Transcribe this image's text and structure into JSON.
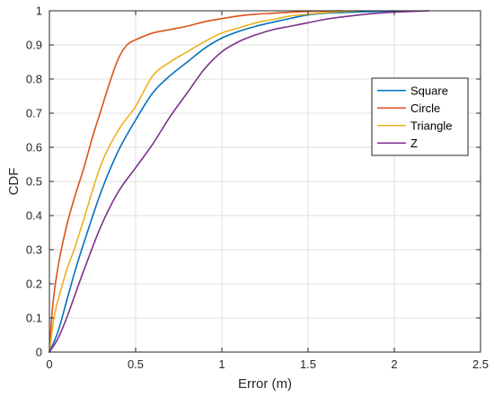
{
  "chart_data": {
    "type": "line",
    "xlabel": "Error (m)",
    "ylabel": "CDF",
    "xlim": [
      0,
      2.5
    ],
    "ylim": [
      0,
      1
    ],
    "xticks": [
      "0",
      "0.5",
      "1",
      "1.5",
      "2",
      "2.5"
    ],
    "yticks": [
      "0",
      "0.1",
      "0.2",
      "0.3",
      "0.4",
      "0.5",
      "0.6",
      "0.7",
      "0.8",
      "0.9",
      "1"
    ],
    "grid": true,
    "legend_position": "right",
    "series": [
      {
        "name": "Square",
        "color": "#0072BD",
        "points": [
          [
            0,
            0
          ],
          [
            0.05,
            0.06
          ],
          [
            0.1,
            0.15
          ],
          [
            0.15,
            0.24
          ],
          [
            0.2,
            0.32
          ],
          [
            0.3,
            0.47
          ],
          [
            0.4,
            0.59
          ],
          [
            0.5,
            0.68
          ],
          [
            0.6,
            0.76
          ],
          [
            0.7,
            0.81
          ],
          [
            0.8,
            0.85
          ],
          [
            0.9,
            0.89
          ],
          [
            1.0,
            0.92
          ],
          [
            1.1,
            0.94
          ],
          [
            1.2,
            0.955
          ],
          [
            1.3,
            0.967
          ],
          [
            1.4,
            0.978
          ],
          [
            1.5,
            0.988
          ],
          [
            1.6,
            0.993
          ],
          [
            1.7,
            0.995
          ],
          [
            1.8,
            0.997
          ],
          [
            1.9,
            0.998
          ],
          [
            2.0,
            1.0
          ]
        ]
      },
      {
        "name": "Circle",
        "color": "#D95319",
        "points": [
          [
            0,
            0
          ],
          [
            0.02,
            0.14
          ],
          [
            0.05,
            0.25
          ],
          [
            0.1,
            0.37
          ],
          [
            0.15,
            0.46
          ],
          [
            0.2,
            0.54
          ],
          [
            0.25,
            0.63
          ],
          [
            0.3,
            0.71
          ],
          [
            0.35,
            0.79
          ],
          [
            0.4,
            0.86
          ],
          [
            0.45,
            0.9
          ],
          [
            0.5,
            0.915
          ],
          [
            0.6,
            0.935
          ],
          [
            0.7,
            0.945
          ],
          [
            0.8,
            0.955
          ],
          [
            0.9,
            0.968
          ],
          [
            1.0,
            0.977
          ],
          [
            1.1,
            0.985
          ],
          [
            1.2,
            0.99
          ],
          [
            1.3,
            0.993
          ],
          [
            1.4,
            0.996
          ],
          [
            1.5,
            0.998
          ],
          [
            1.6,
            0.999
          ],
          [
            1.7,
            1.0
          ]
        ]
      },
      {
        "name": "Triangle",
        "color": "#EDB120",
        "points": [
          [
            0,
            0
          ],
          [
            0.03,
            0.11
          ],
          [
            0.06,
            0.17
          ],
          [
            0.1,
            0.24
          ],
          [
            0.15,
            0.31
          ],
          [
            0.2,
            0.39
          ],
          [
            0.3,
            0.55
          ],
          [
            0.4,
            0.65
          ],
          [
            0.5,
            0.72
          ],
          [
            0.6,
            0.81
          ],
          [
            0.7,
            0.85
          ],
          [
            0.8,
            0.88
          ],
          [
            0.9,
            0.91
          ],
          [
            1.0,
            0.935
          ],
          [
            1.1,
            0.95
          ],
          [
            1.2,
            0.965
          ],
          [
            1.3,
            0.975
          ],
          [
            1.4,
            0.985
          ],
          [
            1.5,
            0.99
          ],
          [
            1.6,
            0.995
          ],
          [
            1.7,
            0.998
          ],
          [
            1.8,
            1.0
          ]
        ]
      },
      {
        "name": "Z",
        "color": "#7E2F8E",
        "points": [
          [
            0,
            0
          ],
          [
            0.05,
            0.04
          ],
          [
            0.1,
            0.1
          ],
          [
            0.15,
            0.17
          ],
          [
            0.2,
            0.24
          ],
          [
            0.3,
            0.37
          ],
          [
            0.4,
            0.47
          ],
          [
            0.5,
            0.54
          ],
          [
            0.6,
            0.61
          ],
          [
            0.7,
            0.69
          ],
          [
            0.8,
            0.76
          ],
          [
            0.9,
            0.83
          ],
          [
            1.0,
            0.88
          ],
          [
            1.1,
            0.91
          ],
          [
            1.2,
            0.93
          ],
          [
            1.3,
            0.945
          ],
          [
            1.4,
            0.955
          ],
          [
            1.5,
            0.965
          ],
          [
            1.6,
            0.975
          ],
          [
            1.7,
            0.982
          ],
          [
            1.8,
            0.988
          ],
          [
            1.9,
            0.993
          ],
          [
            2.0,
            0.996
          ],
          [
            2.1,
            0.998
          ],
          [
            2.2,
            1.0
          ]
        ]
      }
    ]
  }
}
